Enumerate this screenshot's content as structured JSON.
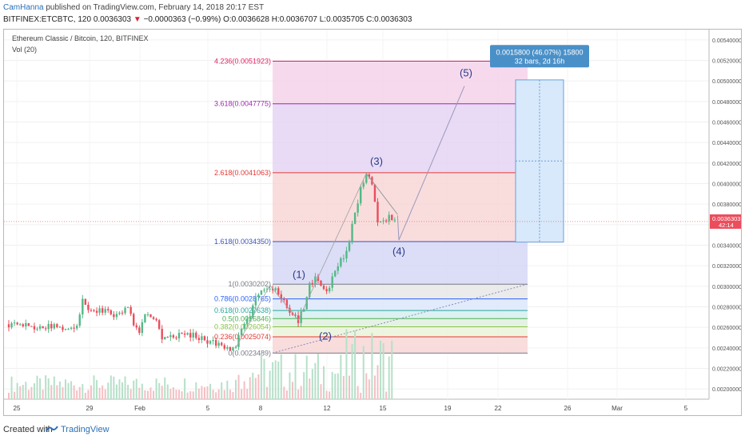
{
  "header": {
    "author": "CamHanna",
    "published": " published on TradingView.com, February 14, 2018 20:17 EST",
    "symbol": "BITFINEX:ETCBTC, 120",
    "last": "0.0036303",
    "change": "−0.0000363 (−0.99%)",
    "ohlc": "O:0.0036628 H:0.0036707 L:0.0035705 C:0.0036303"
  },
  "legend": {
    "title": "Ethereum Classic / Bitcoin, 120, BITFINEX",
    "vol": "Vol (20)"
  },
  "footer": {
    "created": "Created with",
    "brand": "TradingView"
  },
  "colors": {
    "up": "#53b987",
    "down": "#eb4d5c",
    "accent": "#2a6fb6"
  },
  "chart_data": {
    "type": "candlestick",
    "ylim": [
      0.0019,
      0.0055
    ],
    "y_ticks": [
      "0.00200000",
      "0.00220000",
      "0.00240000",
      "0.00260000",
      "0.00280000",
      "0.00300000",
      "0.00320000",
      "0.00340000",
      "0.00360000",
      "0.00380000",
      "0.00400000",
      "0.00420000",
      "0.00440000",
      "0.00460000",
      "0.00480000",
      "0.00500000",
      "0.00520000",
      "0.00540000"
    ],
    "x_ticks": [
      "25",
      "29",
      "Feb",
      "5",
      "8",
      "12",
      "15",
      "19",
      "22",
      "26",
      "Mar",
      "5"
    ],
    "last_price_label": "0.0036303",
    "countdown_label": "42:14",
    "price_path": [
      [
        0,
        0.00263
      ],
      [
        4,
        0.00262
      ],
      [
        8,
        0.00261
      ],
      [
        12,
        0.00259
      ],
      [
        16,
        0.00262
      ],
      [
        20,
        0.00258
      ],
      [
        24,
        0.00263
      ],
      [
        26,
        0.00285
      ],
      [
        28,
        0.00279
      ],
      [
        30,
        0.00277
      ],
      [
        34,
        0.00276
      ],
      [
        38,
        0.00271
      ],
      [
        42,
        0.0028
      ],
      [
        44,
        0.00263
      ],
      [
        46,
        0.00253
      ],
      [
        48,
        0.00272
      ],
      [
        52,
        0.00268
      ],
      [
        54,
        0.00251
      ],
      [
        58,
        0.00249
      ],
      [
        62,
        0.00255
      ],
      [
        66,
        0.00251
      ],
      [
        70,
        0.00247
      ],
      [
        74,
        0.00243
      ],
      [
        78,
        0.00238
      ],
      [
        80,
        0.00242
      ],
      [
        82,
        0.00258
      ],
      [
        84,
        0.00266
      ],
      [
        86,
        0.0028
      ],
      [
        88,
        0.00293
      ],
      [
        90,
        0.00298
      ],
      [
        92,
        0.003
      ],
      [
        94,
        0.00297
      ],
      [
        96,
        0.0029
      ],
      [
        98,
        0.0028
      ],
      [
        100,
        0.00273
      ],
      [
        102,
        0.00267
      ],
      [
        104,
        0.00278
      ],
      [
        106,
        0.00302
      ],
      [
        108,
        0.00307
      ],
      [
        110,
        0.003
      ],
      [
        112,
        0.00293
      ],
      [
        114,
        0.00307
      ],
      [
        116,
        0.00322
      ],
      [
        118,
        0.0033
      ],
      [
        120,
        0.00345
      ],
      [
        122,
        0.00372
      ],
      [
        124,
        0.00395
      ],
      [
        126,
        0.0041
      ],
      [
        128,
        0.004
      ],
      [
        130,
        0.00365
      ],
      [
        132,
        0.00362
      ],
      [
        134,
        0.00367
      ],
      [
        136,
        0.00363
      ]
    ],
    "fib_retracement": [
      {
        "label": "1(0.0030202)",
        "value": 0.0030202,
        "color": "#787b86"
      },
      {
        "label": "0.786(0.0028765)",
        "value": 0.0028765,
        "color": "#2962ff"
      },
      {
        "label": "0.618(0.0027638)",
        "value": 0.0027638,
        "color": "#26a69a"
      },
      {
        "label": "0.5(0.0026846)",
        "value": 0.0026846,
        "color": "#4caf50"
      },
      {
        "label": "0.382(0.0026054)",
        "value": 0.0026054,
        "color": "#8bc34a"
      },
      {
        "label": "0.236(0.0025074)",
        "value": 0.0025074,
        "color": "#e53935"
      },
      {
        "label": "0(0.0023489)",
        "value": 0.0023489,
        "color": "#787b86"
      }
    ],
    "fib_extension": [
      {
        "label": "4.236(0.0051923)",
        "value": 0.0051923,
        "color": "#e91e63"
      },
      {
        "label": "3.618(0.0047775)",
        "value": 0.0047775,
        "color": "#9c27b0"
      },
      {
        "label": "2.618(0.0041063)",
        "value": 0.0041063,
        "color": "#e53935"
      },
      {
        "label": "1.618(0.0034350)",
        "value": 0.003435,
        "color": "#3f51b5"
      }
    ],
    "waves": [
      {
        "label": "(1)",
        "value": 0.00302
      },
      {
        "label": "(2)",
        "value": 0.00262
      },
      {
        "label": "(3)",
        "value": 0.00412
      },
      {
        "label": "(4)",
        "value": 0.00343
      },
      {
        "label": "(5)",
        "value": 0.00498
      }
    ],
    "measure": {
      "line1": "0.0015800 (46.07%) 15800",
      "line2": "32 bars, 2d 16h"
    }
  }
}
